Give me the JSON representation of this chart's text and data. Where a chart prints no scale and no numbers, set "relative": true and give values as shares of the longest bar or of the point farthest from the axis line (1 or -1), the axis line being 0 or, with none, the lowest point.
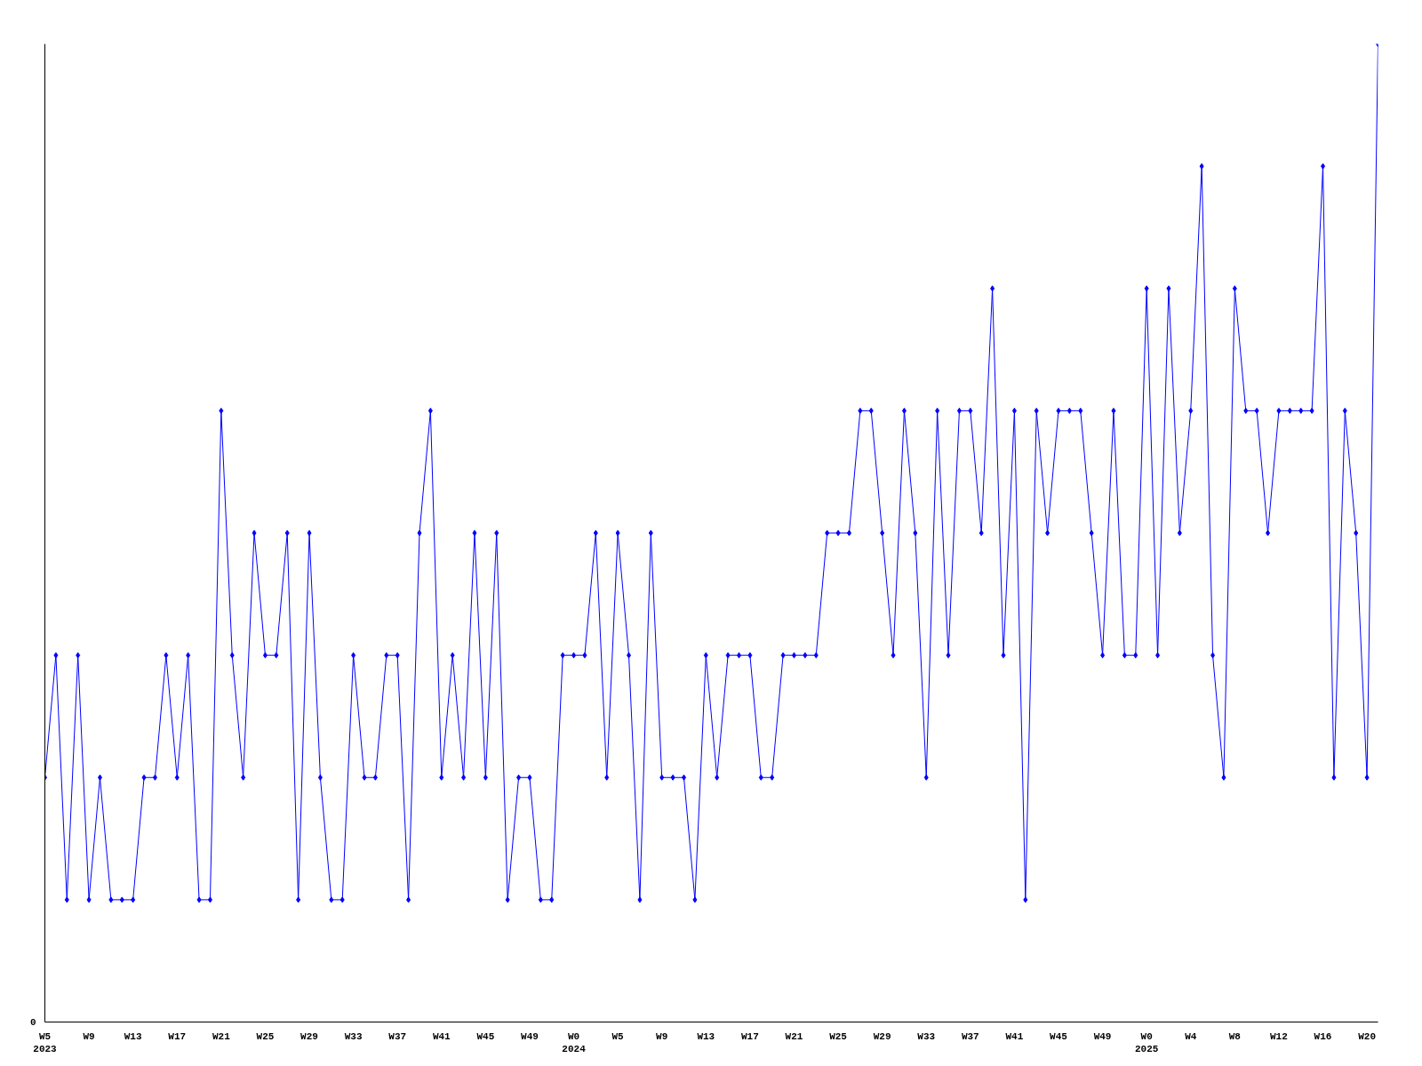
{
  "chart_data": {
    "type": "line",
    "relative": true,
    "color": "#0000ff",
    "marker": "diamond",
    "line_style": "solid",
    "annotations": [
      "0"
    ],
    "categories": [
      "W5\n2023",
      null,
      null,
      null,
      "W9",
      null,
      null,
      null,
      "W13",
      null,
      null,
      null,
      "W17",
      null,
      null,
      null,
      "W21",
      null,
      null,
      null,
      "W25",
      null,
      null,
      null,
      "W29",
      null,
      null,
      null,
      "W33",
      null,
      null,
      null,
      "W37",
      null,
      null,
      null,
      "W41",
      null,
      null,
      null,
      "W45",
      null,
      null,
      null,
      "W49",
      null,
      null,
      null,
      "W0\n2024",
      null,
      null,
      null,
      "W5",
      null,
      null,
      null,
      "W9",
      null,
      null,
      null,
      "W13",
      null,
      null,
      null,
      "W17",
      null,
      null,
      null,
      "W21",
      null,
      null,
      null,
      "W25",
      null,
      null,
      null,
      "W29",
      null,
      null,
      null,
      "W33",
      null,
      null,
      null,
      "W37",
      null,
      null,
      null,
      "W41",
      null,
      null,
      null,
      "W45",
      null,
      null,
      null,
      "W49",
      null,
      null,
      null,
      "W0\n2025",
      null,
      null,
      null,
      "W4",
      null,
      null,
      null,
      "W8",
      null,
      null,
      null,
      "W12",
      null,
      null,
      null,
      "W16",
      null,
      null,
      null,
      "W20",
      null
    ],
    "values": [
      0.25,
      0.375,
      0.125,
      0.375,
      0.125,
      0.25,
      0.125,
      0.125,
      0.125,
      0.25,
      0.25,
      0.375,
      0.25,
      0.375,
      0.125,
      0.125,
      0.625,
      0.375,
      0.25,
      0.5,
      0.375,
      0.375,
      0.5,
      0.125,
      0.5,
      0.25,
      0.125,
      0.125,
      0.375,
      0.25,
      0.25,
      0.375,
      0.375,
      0.125,
      0.5,
      0.625,
      0.25,
      0.375,
      0.25,
      0.5,
      0.25,
      0.5,
      0.125,
      0.25,
      0.25,
      0.125,
      0.125,
      0.375,
      0.375,
      0.375,
      0.5,
      0.25,
      0.5,
      0.375,
      0.125,
      0.5,
      0.25,
      0.25,
      0.25,
      0.125,
      0.375,
      0.25,
      0.375,
      0.375,
      0.375,
      0.25,
      0.25,
      0.375,
      0.375,
      0.375,
      0.375,
      0.5,
      0.5,
      0.5,
      0.625,
      0.625,
      0.5,
      0.375,
      0.625,
      0.5,
      0.25,
      0.625,
      0.375,
      0.625,
      0.625,
      0.5,
      0.75,
      0.375,
      0.625,
      0.125,
      0.625,
      0.5,
      0.625,
      0.625,
      0.625,
      0.5,
      0.375,
      0.625,
      0.375,
      0.375,
      0.75,
      0.375,
      0.75,
      0.5,
      0.625,
      0.875,
      0.375,
      0.25,
      0.75,
      0.625,
      0.625,
      0.5,
      0.625,
      0.625,
      0.625,
      0.625,
      0.875,
      0.25,
      0.625,
      0.5,
      0.25,
      1
    ]
  }
}
